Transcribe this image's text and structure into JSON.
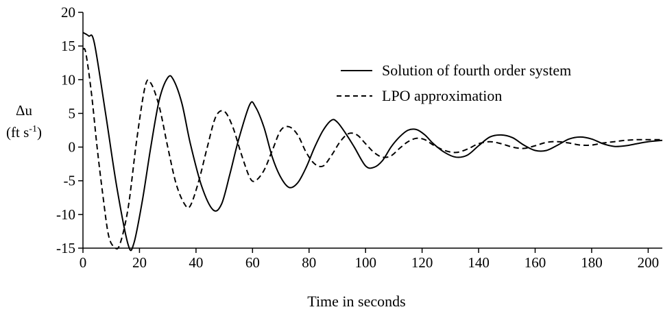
{
  "chart_data": {
    "type": "line",
    "title": "",
    "xlabel": "Time in seconds",
    "ylabel": "Δu",
    "ylabel_unit_main": "(ft s",
    "ylabel_unit_sup": "-1",
    "ylabel_unit_close": ")",
    "xlim": [
      0,
      205
    ],
    "ylim": [
      -15,
      20
    ],
    "xticks": [
      0,
      20,
      40,
      60,
      80,
      100,
      120,
      140,
      160,
      180,
      200
    ],
    "yticks": [
      20,
      15,
      10,
      5,
      0,
      -5,
      -10,
      -15
    ],
    "grid": false,
    "legend_position": "top-right",
    "series": [
      {
        "name": "Solution of fourth order system",
        "style": "solid",
        "color": "#000000",
        "x": [
          0,
          2,
          4,
          8,
          12,
          16,
          18,
          21,
          24,
          27,
          30,
          32,
          35,
          38,
          42,
          46,
          49,
          52,
          55,
          59,
          61,
          64,
          67,
          70,
          73,
          76,
          79,
          82,
          85,
          88,
          90,
          93,
          96,
          100,
          103,
          106,
          109,
          112,
          115,
          118,
          121,
          124,
          128,
          132,
          136,
          140,
          144,
          148,
          152,
          156,
          160,
          164,
          168,
          172,
          176,
          180,
          184,
          188,
          192,
          196,
          200,
          205
        ],
        "y": [
          17,
          16.5,
          15.5,
          5,
          -6,
          -14.5,
          -14.3,
          -8,
          0,
          7,
          10.3,
          10,
          6.5,
          0.5,
          -5.8,
          -9.3,
          -8.5,
          -4,
          1,
          6.3,
          6,
          3,
          -1.5,
          -4.5,
          -6,
          -5.3,
          -3,
          0,
          2.5,
          4,
          3.7,
          2,
          0,
          -2.8,
          -3,
          -2,
          0,
          1.5,
          2.5,
          2.6,
          1.8,
          0.5,
          -0.8,
          -1.5,
          -1.2,
          0.2,
          1.5,
          1.8,
          1.4,
          0.3,
          -0.5,
          -0.5,
          0.3,
          1.2,
          1.5,
          1.2,
          0.5,
          0.1,
          0.2,
          0.5,
          0.8,
          1
        ]
      },
      {
        "name": "LPO approximation",
        "style": "dashed",
        "color": "#000000",
        "x": [
          0,
          1,
          3,
          5,
          7,
          9,
          11,
          13,
          16,
          19,
          22,
          24,
          27,
          30,
          33,
          36,
          38,
          41,
          44,
          47,
          50,
          53,
          56,
          59,
          61,
          64,
          67,
          70,
          73,
          76,
          79,
          82,
          85,
          88,
          91,
          94,
          97,
          100,
          103,
          106,
          109,
          112,
          115,
          118,
          121,
          124,
          128,
          132,
          136,
          140,
          144,
          148,
          152,
          156,
          160,
          164,
          168,
          172,
          176,
          180,
          184,
          188,
          192,
          196,
          200,
          205
        ],
        "y": [
          14.5,
          14,
          8,
          0,
          -7,
          -13,
          -14.8,
          -14.5,
          -9,
          1,
          9,
          9.5,
          6,
          0,
          -5.5,
          -8.5,
          -8.7,
          -5,
          0,
          4.5,
          5.3,
          3,
          -1,
          -4.5,
          -5,
          -3.5,
          -0.5,
          2.5,
          3,
          1.8,
          -0.8,
          -2.5,
          -2.8,
          -1.2,
          0.8,
          2,
          1.8,
          0.5,
          -0.8,
          -1.5,
          -1.3,
          -0.2,
          0.8,
          1.3,
          1.1,
          0.3,
          -0.5,
          -0.8,
          -0.3,
          0.5,
          0.8,
          0.5,
          0,
          -0.2,
          0.2,
          0.7,
          0.8,
          0.6,
          0.3,
          0.3,
          0.6,
          0.8,
          1,
          1.1,
          1.1,
          1.1
        ]
      }
    ]
  }
}
